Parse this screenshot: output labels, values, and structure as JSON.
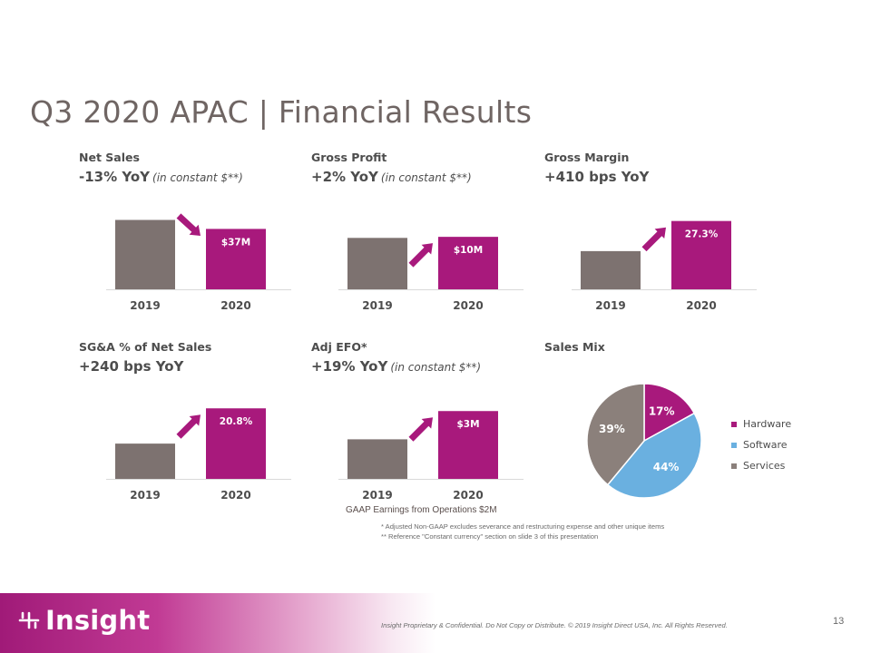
{
  "title": "Q3 2020 APAC | Financial Results",
  "colors": {
    "bar_2019": "#7d7270",
    "bar_2020": "#a8197c",
    "arrow": "#a8197c",
    "hardware": "#a8197c",
    "software": "#6ab0e0",
    "services": "#8b807b"
  },
  "panels": [
    {
      "label": "Net Sales",
      "stat": "-13% YoY",
      "note": "(in constant $**)",
      "arrow": "down"
    },
    {
      "label": "Gross Profit",
      "stat": "+2% YoY",
      "note": "(in constant $**)",
      "arrow": "up"
    },
    {
      "label": "Gross Margin",
      "stat": "+410 bps YoY",
      "note": "",
      "arrow": "up"
    },
    {
      "label": "SG&A % of Net Sales",
      "stat": "+240 bps YoY",
      "note": "",
      "arrow": "up"
    },
    {
      "label": "Adj EFO*",
      "stat": "+19% YoY",
      "note": "(in constant $**)",
      "arrow": "up"
    }
  ],
  "chart_data": [
    {
      "type": "bar",
      "title": "Net Sales",
      "categories": [
        "2019",
        "2020"
      ],
      "values": [
        42.5,
        37
      ],
      "data_labels": [
        "",
        "$37M"
      ],
      "ylim": [
        0,
        45
      ]
    },
    {
      "type": "bar",
      "title": "Gross Profit",
      "categories": [
        "2019",
        "2020"
      ],
      "values": [
        9.8,
        10
      ],
      "data_labels": [
        "",
        "$10M"
      ],
      "ylim": [
        0,
        14
      ]
    },
    {
      "type": "bar",
      "title": "Gross Margin",
      "categories": [
        "2019",
        "2020"
      ],
      "values": [
        23.2,
        27.3
      ],
      "data_labels": [
        "",
        "27.3%"
      ],
      "ylim": [
        18,
        28
      ]
    },
    {
      "type": "bar",
      "title": "SG&A % of Net Sales",
      "categories": [
        "2019",
        "2020"
      ],
      "values": [
        18.4,
        20.8
      ],
      "data_labels": [
        "",
        "20.8%"
      ],
      "ylim": [
        16,
        21
      ]
    },
    {
      "type": "bar",
      "title": "Adj EFO*",
      "categories": [
        "2019",
        "2020"
      ],
      "values": [
        2.5,
        3
      ],
      "data_labels": [
        "",
        "$3M"
      ],
      "ylim": [
        1.8,
        3.1
      ]
    },
    {
      "type": "pie",
      "title": "Sales Mix",
      "categories": [
        "Hardware",
        "Software",
        "Services"
      ],
      "values": [
        17,
        44,
        39
      ],
      "data_labels": [
        "17%",
        "44%",
        "39%"
      ],
      "legend": "right"
    }
  ],
  "pie_label": "Sales Mix",
  "gaap_note": "GAAP Earnings from Operations $2M",
  "footnotes": [
    "*   Adjusted Non-GAAP excludes severance and restructuring  expense and other unique items",
    "** Reference \"Constant currency\" section  on slide 3 of this presentation"
  ],
  "footer": {
    "logo_text": "Insight",
    "confidential": "Insight Proprietary & Confidential. Do Not Copy or Distribute.  © 2019 Insight Direct USA, Inc. All Rights Reserved.",
    "page_number": "13"
  }
}
